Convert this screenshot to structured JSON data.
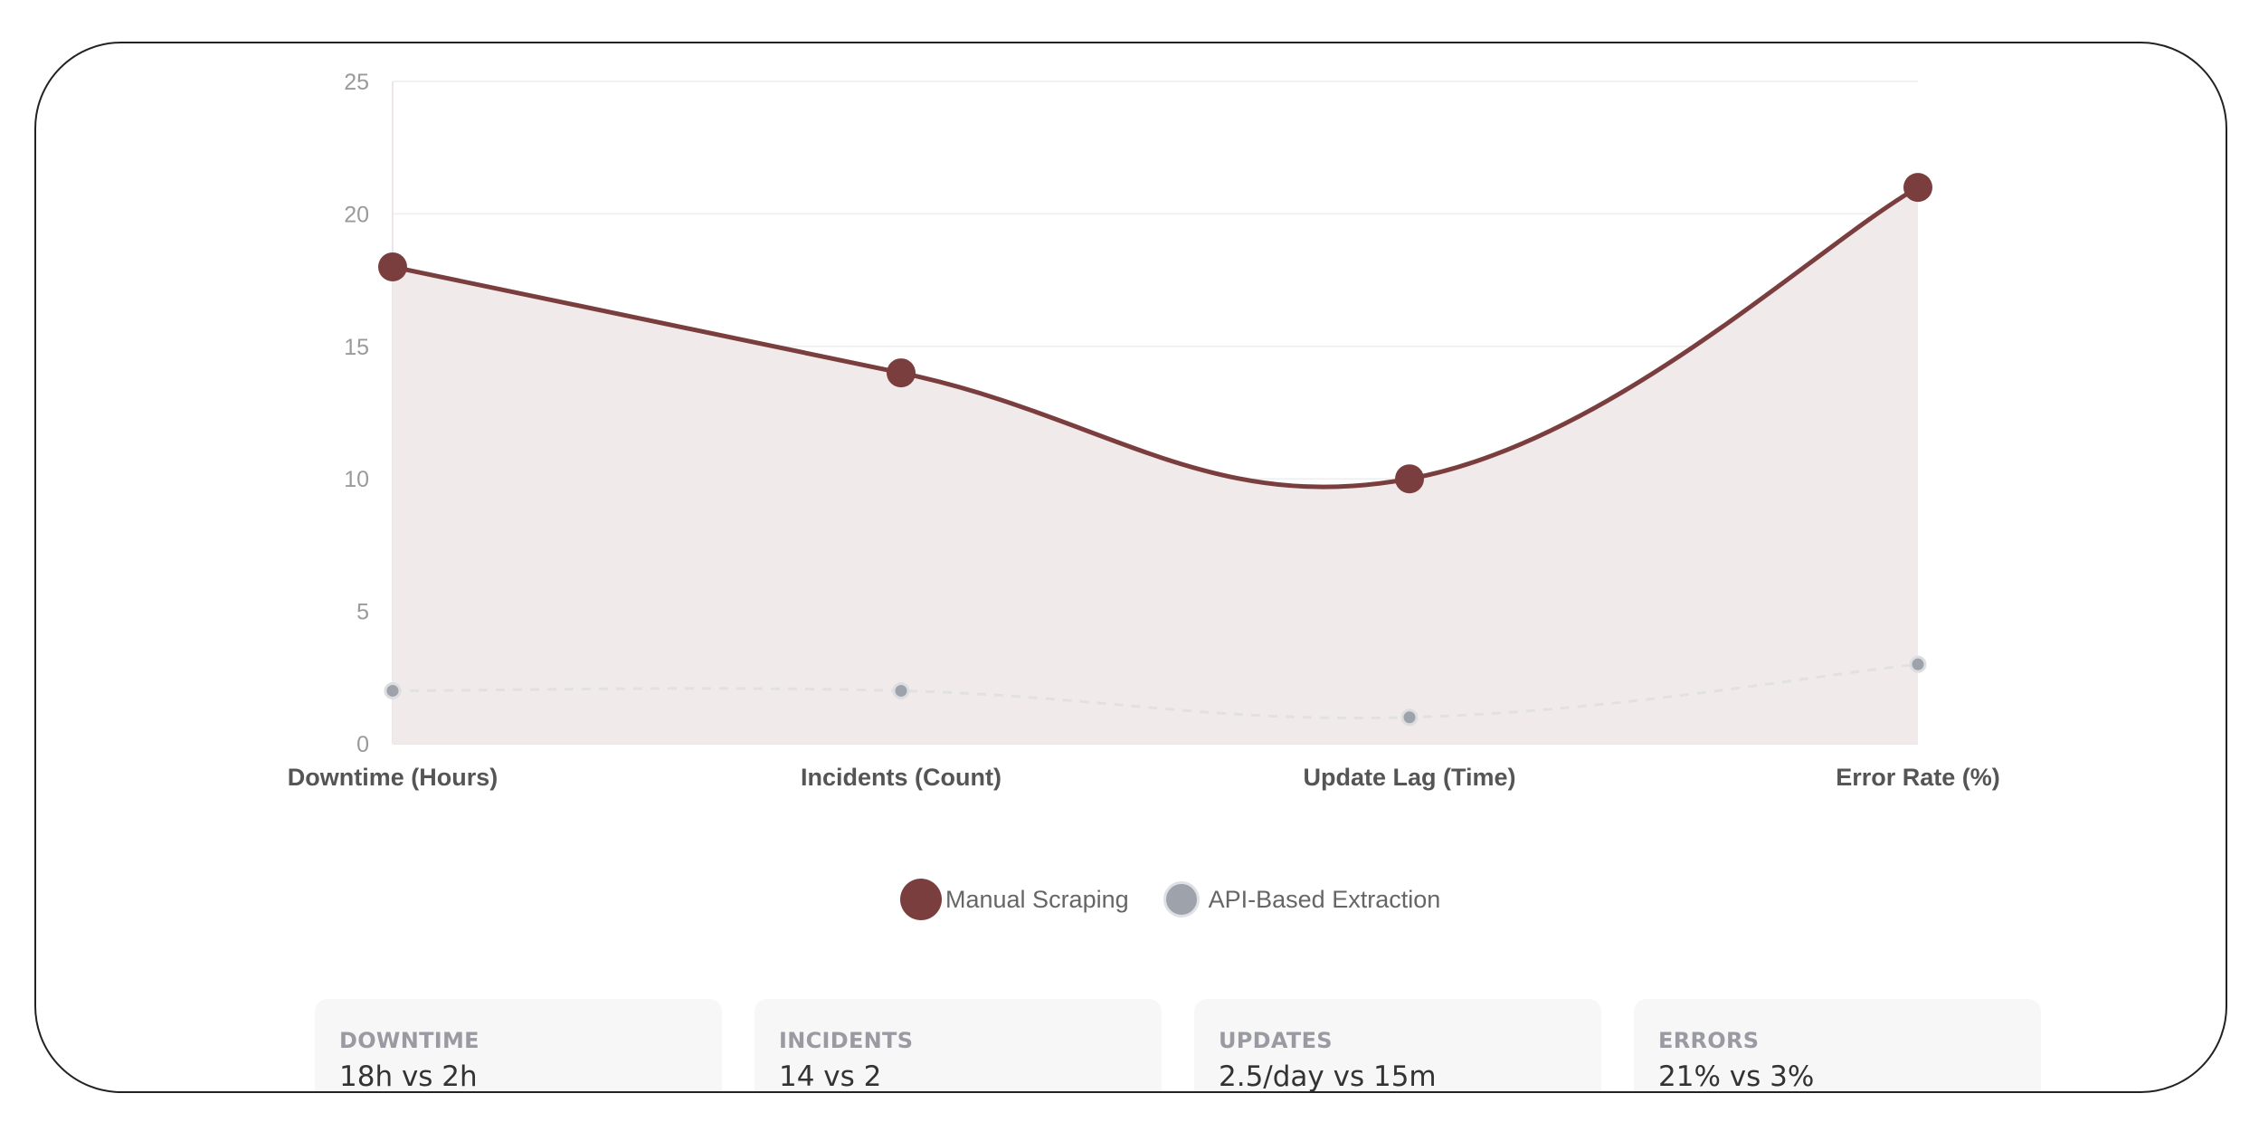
{
  "chart_data": {
    "type": "area",
    "categories": [
      "Downtime (Hours)",
      "Incidents (Count)",
      "Update Lag (Time)",
      "Error Rate (%)"
    ],
    "series": [
      {
        "name": "Manual Scraping",
        "values": [
          18,
          14,
          10,
          21
        ],
        "color": "#7a3e3e",
        "fill": "#f1eaea",
        "style": "solid-area"
      },
      {
        "name": "API-Based Extraction",
        "values": [
          2,
          2,
          1,
          3
        ],
        "color": "#9ea2ab",
        "style": "dashed"
      }
    ],
    "yticks": [
      0,
      5,
      10,
      15,
      20,
      25
    ],
    "ylim": [
      0,
      25
    ],
    "grid": true,
    "legend": "bottom-center"
  },
  "stats": [
    {
      "label": "DOWNTIME",
      "value": "18h vs 2h"
    },
    {
      "label": "INCIDENTS",
      "value": "14 vs 2"
    },
    {
      "label": "UPDATES",
      "value": "2.5/day vs 15m"
    },
    {
      "label": "ERRORS",
      "value": "21% vs 3%"
    }
  ]
}
